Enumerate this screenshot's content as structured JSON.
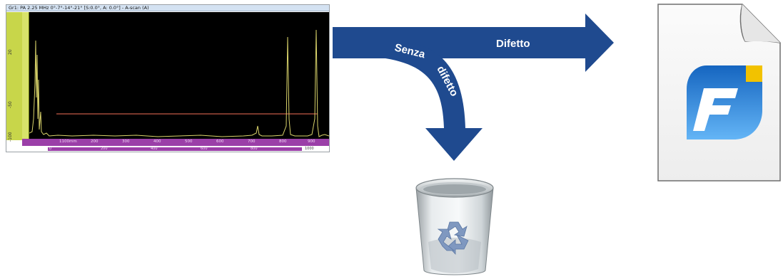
{
  "oscilloscope": {
    "title": "Gr1: PA 2.25 MHz  0°-7°-14°-21° [S:0.0°, A: 0.0°] - A-scan (A)",
    "ruler_labels": [
      "20",
      "-50",
      "-100"
    ],
    "scale_labels": [
      "1100mm",
      "200",
      "300",
      "400",
      "500",
      "600",
      "700",
      "800",
      "900"
    ],
    "bar_labels": [
      "0",
      "200",
      "400",
      "600",
      "800",
      "1000"
    ],
    "colors": {
      "screen": "#000000",
      "trace": "#d9d36a",
      "gate": "#a34a3a",
      "scale": "#9b3fa8"
    }
  },
  "arrows": {
    "defect_label": "Difetto",
    "no_defect_label_part1": "Senza",
    "no_defect_label_part2": "difetto",
    "color": "#1f4a8f"
  },
  "file_icon": {
    "icon": "document-file-icon",
    "logo_letter": "F",
    "colors": {
      "logo_top": "#1565c0",
      "logo_bottom": "#64b5f6",
      "accent": "#f2c200"
    }
  },
  "trash_icon": {
    "icon": "recycle-bin-icon"
  }
}
